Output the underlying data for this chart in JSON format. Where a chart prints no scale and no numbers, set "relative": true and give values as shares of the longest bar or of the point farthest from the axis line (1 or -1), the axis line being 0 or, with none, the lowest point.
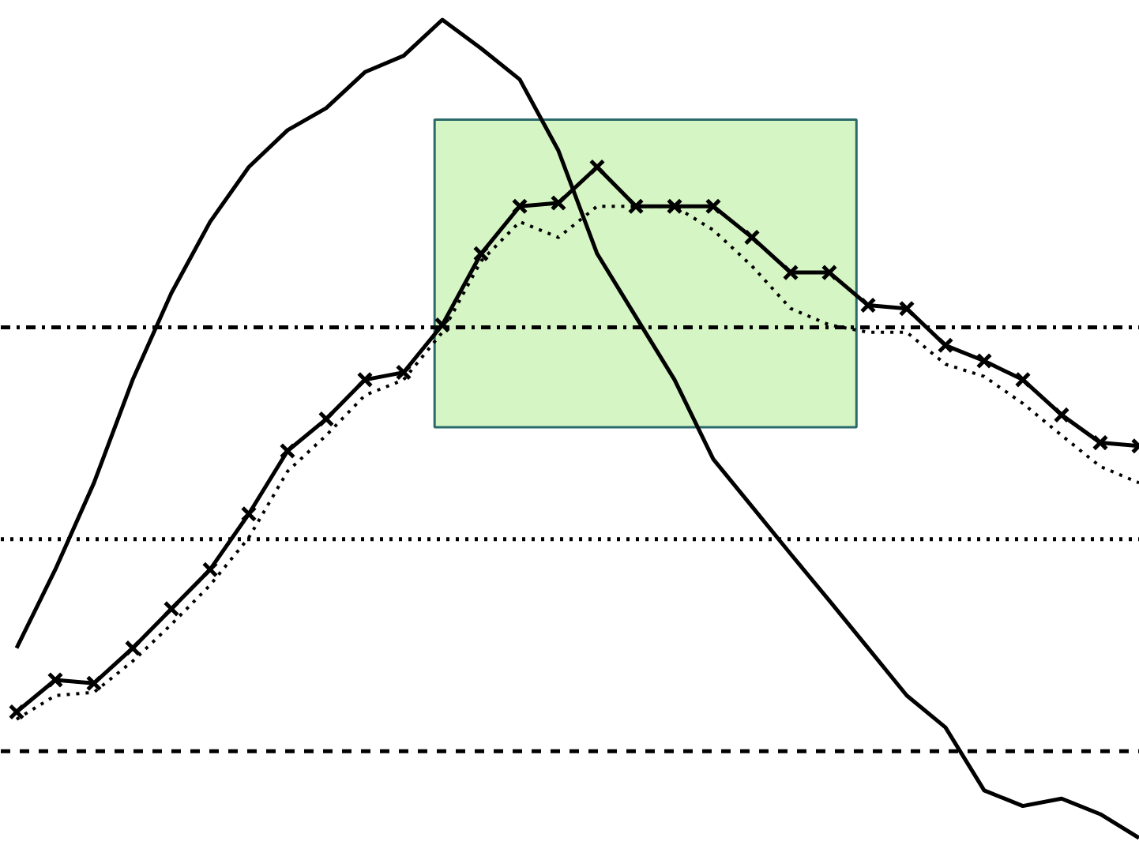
{
  "chart_data": {
    "type": "line",
    "relative": true,
    "grid": false,
    "categories": [
      null,
      null,
      null,
      null,
      null,
      null,
      null,
      null,
      null,
      null,
      null,
      null,
      null,
      null,
      null,
      null,
      null,
      null,
      null,
      null,
      null,
      null,
      null,
      null,
      null,
      null,
      null,
      null,
      null,
      null
    ],
    "series": [
      {
        "color": "#000000",
        "line_style": "solid",
        "marker": "none",
        "values": [
          0.232,
          0.328,
          0.434,
          0.56,
          0.666,
          0.753,
          0.82,
          0.865,
          0.892,
          0.936,
          0.956,
          1.0,
          0.965,
          0.927,
          0.84,
          0.714,
          0.637,
          0.56,
          0.463,
          0.405,
          0.347,
          0.29,
          0.232,
          0.174,
          0.135,
          0.058,
          0.039,
          0.048,
          0.029,
          0.0
        ]
      },
      {
        "color": "#000000",
        "line_style": "solid",
        "marker": "cross",
        "values": [
          0.154,
          0.193,
          0.189,
          0.232,
          0.28,
          0.328,
          0.396,
          0.473,
          0.512,
          0.56,
          0.569,
          0.627,
          0.714,
          0.772,
          0.776,
          0.82,
          0.772,
          0.772,
          0.772,
          0.734,
          0.691,
          0.691,
          0.651,
          0.647,
          0.602,
          0.583,
          0.56,
          0.517,
          0.483,
          0.479
        ]
      },
      {
        "color": "#000000",
        "line_style": "dotted",
        "marker": "none",
        "values": [
          0.145,
          0.174,
          0.178,
          0.216,
          0.261,
          0.309,
          0.367,
          0.448,
          0.492,
          0.541,
          0.56,
          0.618,
          0.705,
          0.753,
          0.734,
          0.772,
          0.772,
          0.772,
          0.743,
          0.699,
          0.647,
          0.627,
          0.618,
          0.618,
          0.579,
          0.564,
          0.531,
          0.492,
          0.454,
          0.434
        ]
      }
    ],
    "ref_lines": [
      {
        "axis": "y",
        "value": 0.624,
        "line_style": "dashdot",
        "color": "#000000"
      },
      {
        "axis": "y",
        "value": 0.365,
        "line_style": "dotted",
        "color": "#000000"
      },
      {
        "axis": "y",
        "value": 0.106,
        "line_style": "dashed",
        "color": "#000000"
      }
    ],
    "bands": [
      {
        "axis": "y",
        "from": 0.502,
        "to": 0.878,
        "color": "#d6f5c4"
      }
    ]
  }
}
